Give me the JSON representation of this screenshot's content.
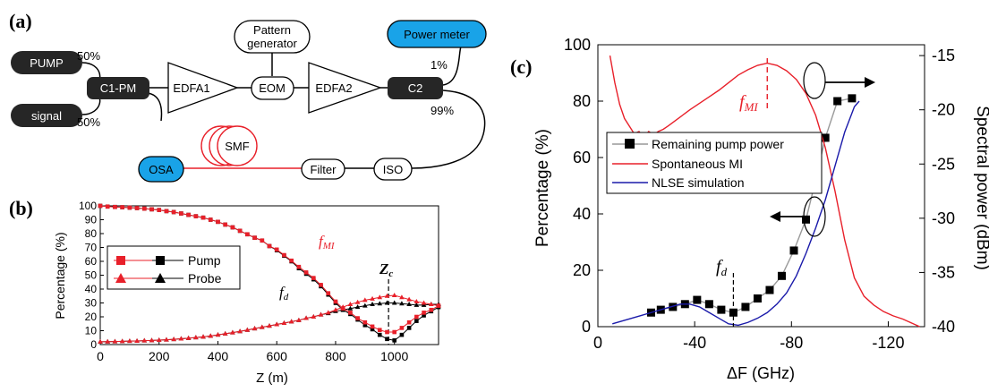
{
  "panel_a": {
    "label": "(a)",
    "pump_label": "PUMP",
    "signal_label": "signal",
    "pump_split": "50%",
    "signal_split": "50%",
    "coupler1": "C1-PM",
    "edfa1": "EDFA1",
    "eom": "EOM",
    "pattern_line1": "Pattern",
    "pattern_line2": "generator",
    "edfa2": "EDFA2",
    "coupler2": "C2",
    "power_meter": "Power meter",
    "tap_1pct": "1%",
    "tap_99pct": "99%",
    "smf": "SMF",
    "osa": "OSA",
    "filter": "Filter",
    "iso": "ISO",
    "colors": {
      "osa": "#19a3e8",
      "power_meter": "#19a3e8",
      "fiber_red": "#e8202a",
      "dark_box": "#262626"
    }
  },
  "chart_data": [
    {
      "panel_label": "(b)",
      "type": "line",
      "xlabel": "Z (m)",
      "ylabel": "Percentage (%)",
      "xlim": [
        0,
        1150
      ],
      "ylim": [
        0,
        100
      ],
      "xticks": [
        0,
        200,
        400,
        600,
        800,
        1000
      ],
      "yticks": [
        0,
        10,
        20,
        30,
        40,
        50,
        60,
        70,
        80,
        90,
        100
      ],
      "legend_position": "left",
      "legend_entries": [
        "Pump",
        "Probe"
      ],
      "annotations": {
        "fmi": "f",
        "fmi_sub": "MI",
        "fd": "f",
        "fd_sub": "d",
        "zc": "Z",
        "zc_sub": "c"
      },
      "zc_x": 980,
      "series": [
        {
          "name": "Pump",
          "marker": "square",
          "color": "#000000",
          "x": [
            0,
            25,
            50,
            75,
            100,
            125,
            150,
            175,
            200,
            225,
            250,
            275,
            300,
            325,
            350,
            375,
            400,
            425,
            450,
            475,
            500,
            525,
            550,
            575,
            600,
            625,
            650,
            675,
            700,
            725,
            750,
            775,
            800,
            825,
            850,
            875,
            900,
            925,
            950,
            975,
            1000,
            1025,
            1050,
            1075,
            1100,
            1125,
            1150
          ],
          "y": [
            100,
            99.5,
            99.2,
            99,
            98.7,
            98.4,
            98,
            97.5,
            97,
            96.2,
            95.5,
            94.5,
            93.5,
            92.5,
            91.5,
            90,
            88.5,
            86.5,
            84.5,
            82,
            79.5,
            77,
            75,
            71,
            68,
            64,
            60,
            55,
            51,
            47,
            42,
            36,
            30,
            25,
            22,
            18,
            14,
            11,
            7,
            4,
            3,
            7,
            12,
            17,
            21,
            24,
            27
          ]
        },
        {
          "name": "Pump",
          "marker": "square",
          "color": "#e8202a",
          "x": [
            0,
            25,
            50,
            75,
            100,
            125,
            150,
            175,
            200,
            225,
            250,
            275,
            300,
            325,
            350,
            375,
            400,
            425,
            450,
            475,
            500,
            525,
            550,
            575,
            600,
            625,
            650,
            675,
            700,
            725,
            750,
            775,
            800,
            825,
            850,
            875,
            900,
            925,
            950,
            975,
            1000,
            1025,
            1050,
            1075,
            1100,
            1125,
            1150
          ],
          "y": [
            100,
            99.5,
            99.2,
            99,
            98.7,
            98.4,
            98,
            97.5,
            97,
            96.2,
            95.5,
            94.5,
            93.5,
            92.5,
            91.5,
            90,
            88.5,
            86.5,
            84.5,
            82,
            79.5,
            77,
            75,
            71,
            68.5,
            64.5,
            60.5,
            56,
            52,
            48,
            43,
            37,
            31,
            26,
            23,
            19,
            16,
            13,
            10.5,
            9,
            9,
            12,
            16,
            20,
            23,
            25,
            28
          ]
        },
        {
          "name": "Probe",
          "marker": "triangle",
          "color": "#000000",
          "x": [
            0,
            25,
            50,
            75,
            100,
            125,
            150,
            175,
            200,
            225,
            250,
            275,
            300,
            325,
            350,
            375,
            400,
            425,
            450,
            475,
            500,
            525,
            550,
            575,
            600,
            625,
            650,
            675,
            700,
            725,
            750,
            775,
            800,
            825,
            850,
            875,
            900,
            925,
            950,
            975,
            1000,
            1025,
            1050,
            1075,
            1100,
            1125,
            1150
          ],
          "y": [
            2,
            2.1,
            2.2,
            2.3,
            2.5,
            2.6,
            2.8,
            3,
            3.2,
            3.5,
            3.8,
            4.2,
            4.6,
            5.1,
            5.6,
            6.2,
            7,
            7.8,
            8.6,
            9.5,
            10.5,
            11.5,
            12.5,
            13.5,
            14.5,
            15.5,
            16.5,
            17.5,
            19,
            20,
            21.5,
            22.5,
            24,
            25,
            26,
            27,
            28,
            29,
            29.5,
            30,
            30,
            29.5,
            29,
            28.5,
            28.5,
            29,
            29
          ]
        },
        {
          "name": "Probe",
          "marker": "triangle",
          "color": "#e8202a",
          "x": [
            0,
            25,
            50,
            75,
            100,
            125,
            150,
            175,
            200,
            225,
            250,
            275,
            300,
            325,
            350,
            375,
            400,
            425,
            450,
            475,
            500,
            525,
            550,
            575,
            600,
            625,
            650,
            675,
            700,
            725,
            750,
            775,
            800,
            825,
            850,
            875,
            900,
            925,
            950,
            975,
            1000,
            1025,
            1050,
            1075,
            1100,
            1125,
            1150
          ],
          "y": [
            2,
            2.1,
            2.2,
            2.3,
            2.5,
            2.6,
            2.8,
            3,
            3.2,
            3.5,
            3.8,
            4.2,
            4.6,
            5.1,
            5.6,
            6.2,
            7,
            7.8,
            8.6,
            9.5,
            10.5,
            11.5,
            12.5,
            13.5,
            14.5,
            15.5,
            16.5,
            17.5,
            19,
            20,
            21.5,
            23,
            25,
            27,
            29,
            30.5,
            32,
            33,
            34,
            35,
            35.5,
            34,
            32.5,
            31,
            30,
            29,
            28
          ]
        }
      ]
    },
    {
      "panel_label": "(c)",
      "type": "line",
      "xlabel": "ΔF (GHz)",
      "ylabel_left": "Percentage (%)",
      "ylabel_right": "Spectral power (dBm)",
      "xlim": [
        0,
        -135
      ],
      "ylim_left": [
        0,
        100
      ],
      "ylim_right": [
        -40,
        -14
      ],
      "xticks": [
        -40,
        -80,
        -120
      ],
      "xtick_labels": [
        "0",
        "-40",
        "-80",
        "-120"
      ],
      "xtick_values": [
        0,
        -40,
        -80,
        -120
      ],
      "yticks_left": [
        0,
        20,
        40,
        60,
        80,
        100
      ],
      "yticks_right": [
        -40,
        -35,
        -30,
        -25,
        -20,
        -15
      ],
      "legend_position": "center-left",
      "annotations": {
        "fmi": "f",
        "fmi_sub": "MI",
        "fd": "f",
        "fd_sub": "d"
      },
      "fmi_x": -70,
      "fd_x": -56,
      "series": [
        {
          "name": "Remaining pump power",
          "axis": "left",
          "color": "#000000",
          "line_color": "#999999",
          "marker": "square",
          "x": [
            -22,
            -26,
            -31,
            -36,
            -41,
            -46,
            -51,
            -56,
            -61,
            -66,
            -71,
            -76,
            -81,
            -86,
            -90,
            -94,
            -99,
            -105
          ],
          "y": [
            5,
            6,
            7,
            8,
            9.5,
            8,
            6,
            5,
            7,
            10,
            13,
            18,
            27,
            38,
            52,
            67,
            80,
            81
          ]
        },
        {
          "name": "Spontaneous MI",
          "axis": "right",
          "color": "#e8202a",
          "x": [
            -5,
            -7,
            -9,
            -11,
            -13,
            -15,
            -17,
            -19,
            -21,
            -23,
            -25,
            -27,
            -29,
            -32,
            -35,
            -38,
            -42,
            -46,
            -50,
            -54,
            -58,
            -62,
            -66,
            -70,
            -74,
            -78,
            -82,
            -86,
            -90,
            -94,
            -98,
            -102,
            -106,
            -110,
            -114,
            -118,
            -122,
            -126,
            -130,
            -133
          ],
          "y": [
            -15,
            -17.5,
            -19.5,
            -20.8,
            -21.5,
            -22.2,
            -22,
            -22.5,
            -22,
            -22.3,
            -22,
            -21.8,
            -21.5,
            -21,
            -20.5,
            -20,
            -19.4,
            -18.8,
            -18.2,
            -17.5,
            -16.8,
            -16.3,
            -15.9,
            -15.7,
            -15.9,
            -16.4,
            -17.2,
            -18.5,
            -20.5,
            -23.5,
            -27.5,
            -32,
            -35.5,
            -37.2,
            -38,
            -38.6,
            -39,
            -39.3,
            -39.7,
            -40
          ]
        },
        {
          "name": "NLSE simulation",
          "axis": "left",
          "color": "#1a1aaa",
          "x": [
            -6,
            -10,
            -14,
            -18,
            -22,
            -26,
            -30,
            -34,
            -38,
            -42,
            -46,
            -50,
            -54,
            -58,
            -62,
            -66,
            -70,
            -74,
            -78,
            -82,
            -86,
            -90,
            -94,
            -98,
            -102,
            -106,
            -108
          ],
          "y": [
            1,
            2,
            3,
            4,
            5,
            6,
            7,
            8,
            8,
            7,
            5,
            3,
            1,
            0.5,
            1.5,
            3,
            5,
            8,
            12,
            18,
            26,
            35,
            45,
            57,
            69,
            78,
            80
          ]
        }
      ]
    }
  ]
}
